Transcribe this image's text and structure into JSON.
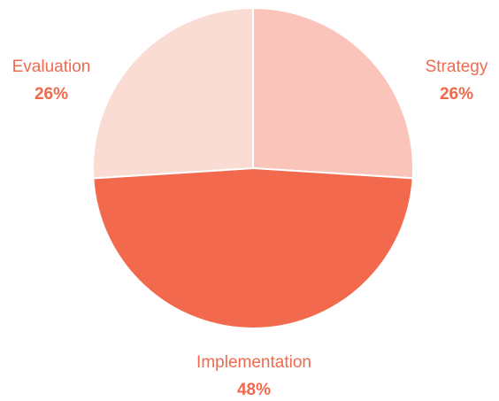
{
  "chart_data": {
    "type": "pie",
    "categories": [
      "Strategy",
      "Implementation",
      "Evaluation"
    ],
    "values": [
      26,
      48,
      26
    ],
    "value_labels": [
      "26%",
      "48%",
      "26%"
    ],
    "colors": [
      "#fbc4bb",
      "#f2694e",
      "#fbdcd5"
    ]
  }
}
